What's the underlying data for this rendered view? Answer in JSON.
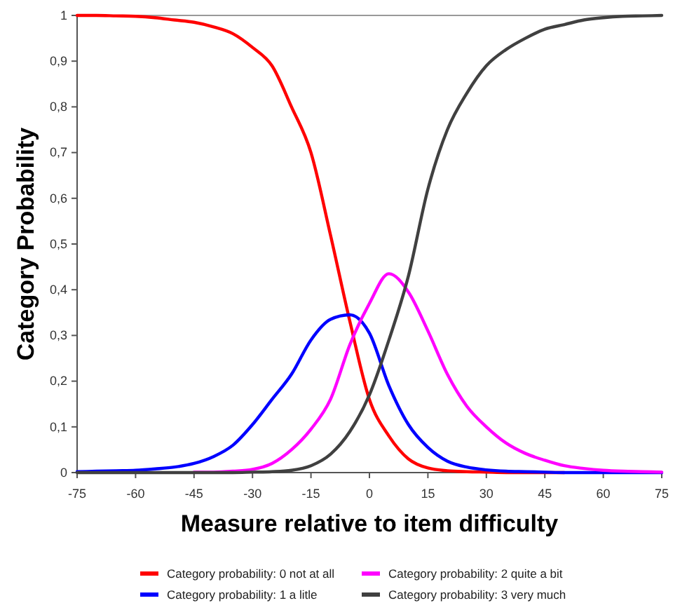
{
  "chart_data": {
    "type": "line",
    "xlabel": "Measure relative to item difficulty",
    "ylabel": "Category Probability",
    "x": [
      -75,
      -70,
      -65,
      -60,
      -55,
      -50,
      -45,
      -40,
      -35,
      -30,
      -25,
      -20,
      -15,
      -10,
      -5,
      0,
      5,
      10,
      15,
      20,
      25,
      30,
      35,
      40,
      45,
      50,
      55,
      60,
      65,
      70,
      75
    ],
    "series": [
      {
        "name": "Category probability: 0 not at all",
        "color": "#ff0000",
        "values": [
          1,
          1,
          0.999,
          0.998,
          0.995,
          0.99,
          0.985,
          0.975,
          0.96,
          0.93,
          0.89,
          0.8,
          0.7,
          0.52,
          0.33,
          0.16,
          0.08,
          0.03,
          0.01,
          0.004,
          0.002,
          0.001,
          0,
          0,
          0,
          0,
          null,
          null,
          null,
          null,
          null
        ]
      },
      {
        "name": "Category probability: 1 a litle",
        "color": "#0000ff",
        "values": [
          0.002,
          0.003,
          0.004,
          0.005,
          0.008,
          0.012,
          0.02,
          0.035,
          0.06,
          0.105,
          0.16,
          0.215,
          0.29,
          0.335,
          0.345,
          0.305,
          0.19,
          0.105,
          0.055,
          0.025,
          0.012,
          0.006,
          0.003,
          0.002,
          0.001,
          0,
          0,
          0,
          0,
          0,
          0
        ]
      },
      {
        "name": "Category probability: 2 quite a bit",
        "color": "#ff00ff",
        "values": [
          null,
          null,
          null,
          null,
          null,
          null,
          0.001,
          0.001,
          0.003,
          0.007,
          0.02,
          0.05,
          0.095,
          0.16,
          0.28,
          0.37,
          0.435,
          0.395,
          0.31,
          0.215,
          0.145,
          0.1,
          0.065,
          0.042,
          0.027,
          0.015,
          0.009,
          0.005,
          0.003,
          0.002,
          0.001
        ]
      },
      {
        "name": "Category probability: 3 very much",
        "color": "#404040",
        "values": [
          0,
          0,
          0,
          0,
          0,
          0,
          0,
          0,
          0,
          0.001,
          0.002,
          0.005,
          0.015,
          0.04,
          0.09,
          0.17,
          0.29,
          0.43,
          0.62,
          0.75,
          0.83,
          0.89,
          0.925,
          0.95,
          0.97,
          0.98,
          0.99,
          0.995,
          0.998,
          0.999,
          1
        ]
      }
    ],
    "xlim": [
      -75,
      75
    ],
    "xticks": [
      -75,
      -60,
      -45,
      -30,
      -15,
      0,
      15,
      30,
      45,
      60,
      75
    ],
    "ylim": [
      0,
      1
    ],
    "yticks": [
      0,
      {
        "value": 0.1,
        "label": "0,1"
      },
      {
        "value": 0.2,
        "label": "0,2"
      },
      {
        "value": 0.3,
        "label": "0,3"
      },
      {
        "value": 0.4,
        "label": "0,4"
      },
      {
        "value": 0.5,
        "label": "0,5"
      },
      {
        "value": 0.6,
        "label": "0,6"
      },
      {
        "value": 0.7,
        "label": "0,7"
      },
      {
        "value": 0.8,
        "label": "0,8"
      },
      {
        "value": 0.9,
        "label": "0,9"
      },
      1
    ],
    "grid": false,
    "legend": "bottom",
    "marker": "none",
    "line_style": "solid"
  }
}
